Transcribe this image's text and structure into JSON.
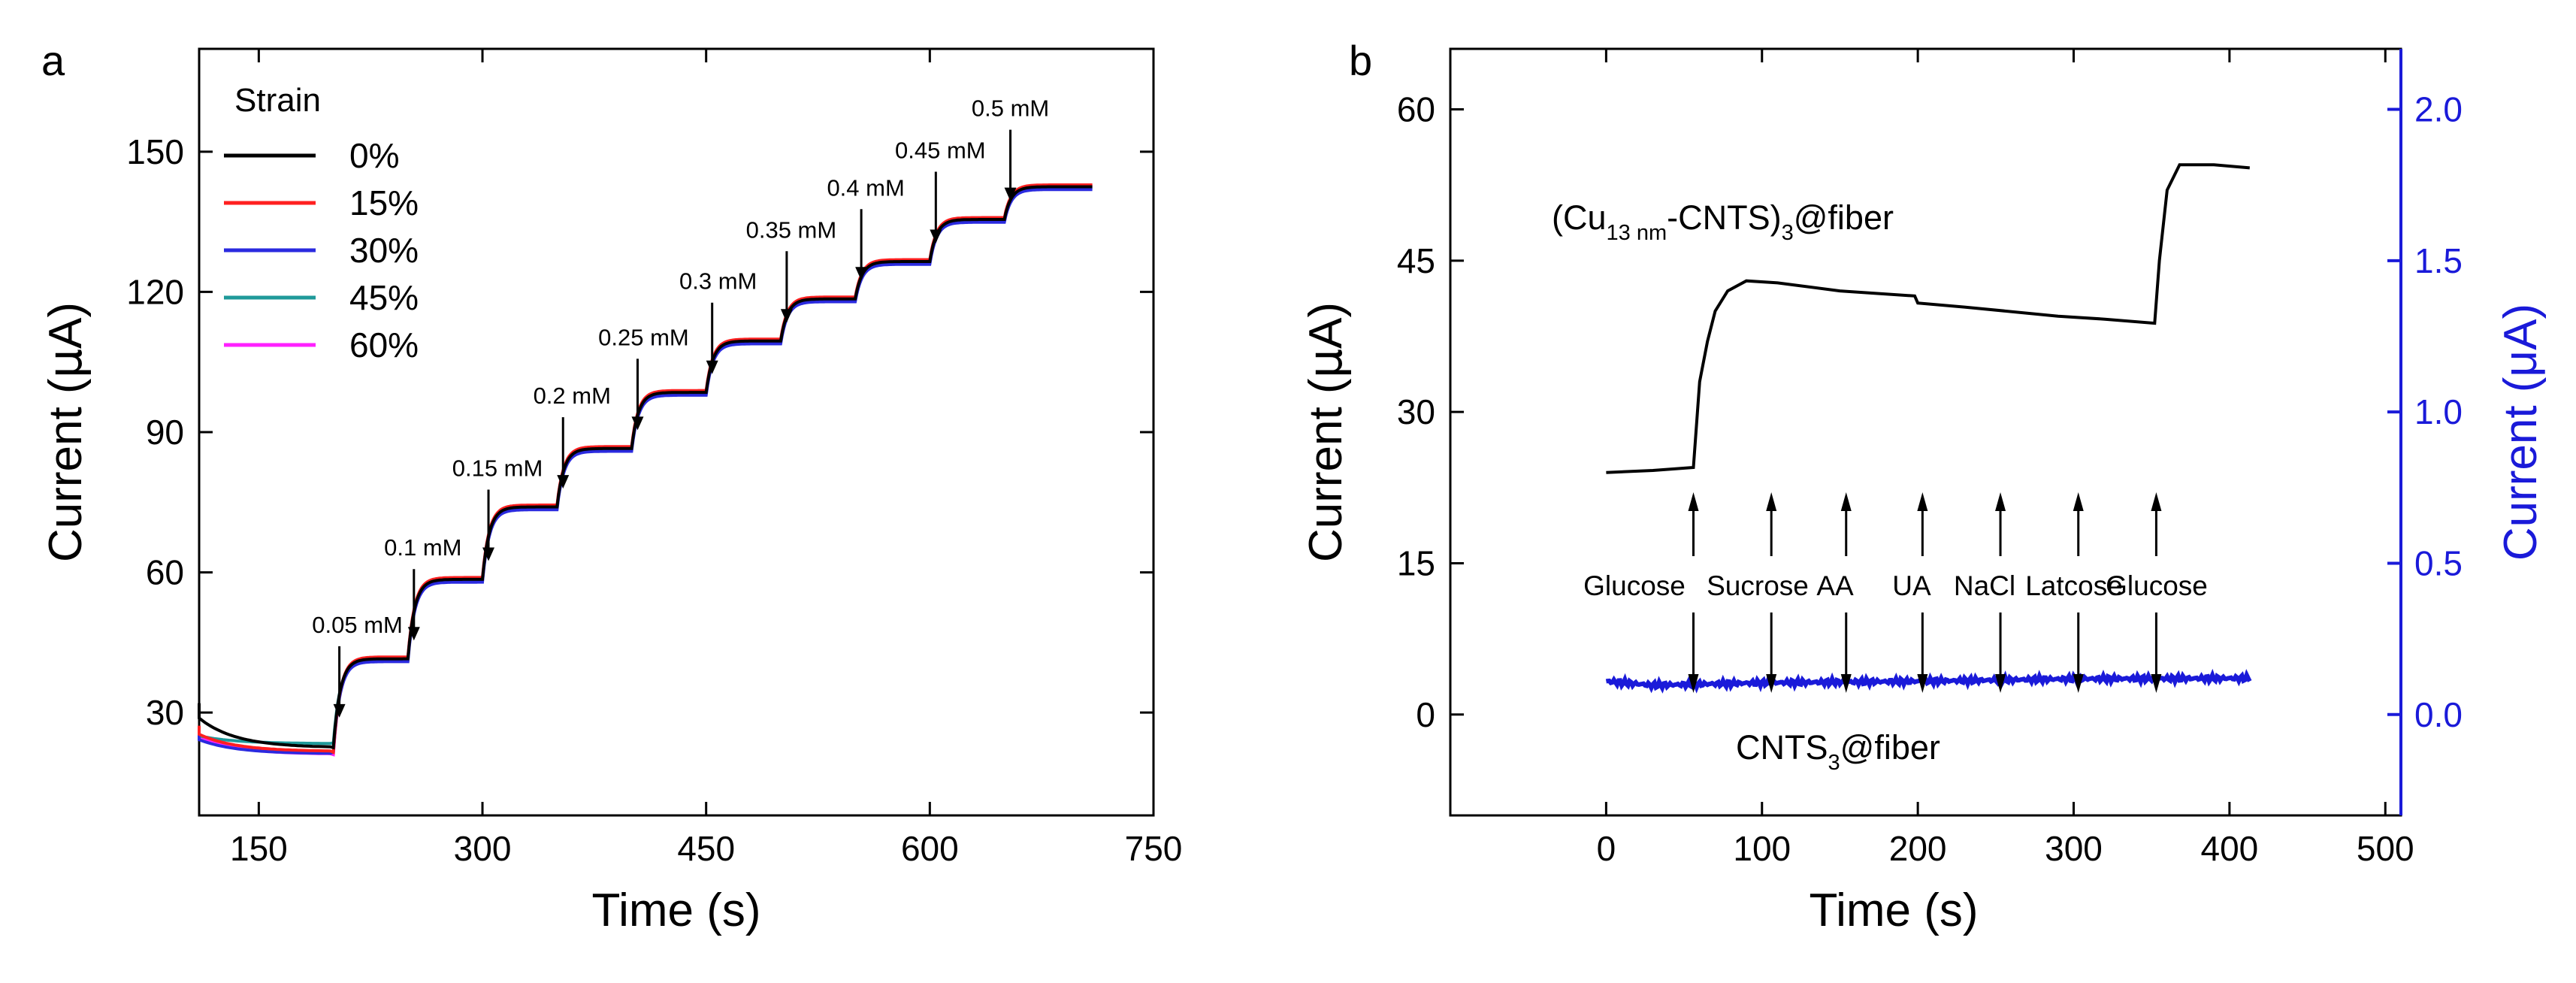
{
  "chart_data": [
    {
      "panel": "a",
      "type": "line",
      "xlabel": "Time (s)",
      "ylabel_main": "Current (",
      "ylabel_mu": "μ",
      "ylabel_unit": "A)",
      "xlim": [
        110,
        750
      ],
      "ylim": [
        8,
        172
      ],
      "xticks": [
        150,
        300,
        450,
        600,
        750
      ],
      "yticks": [
        30,
        60,
        90,
        120,
        150
      ],
      "legend": {
        "title": "Strain",
        "position": "top-left",
        "entries": [
          {
            "label": "0%",
            "color": "#000000"
          },
          {
            "label": "15%",
            "color": "#ff2020"
          },
          {
            "label": "30%",
            "color": "#2a2adf"
          },
          {
            "label": "45%",
            "color": "#1f9a9a"
          },
          {
            "label": "60%",
            "color": "#ff20ff"
          }
        ]
      },
      "series": [
        {
          "name": "0%",
          "offset": 0,
          "start": 32,
          "pre": 22.5
        },
        {
          "name": "15%",
          "offset": 0.4,
          "start": 27,
          "pre": 21.5
        },
        {
          "name": "30%",
          "offset": -0.6,
          "start": 26,
          "pre": 21.5
        },
        {
          "name": "45%",
          "offset": -0.3,
          "start": 26,
          "pre": 23.5
        },
        {
          "name": "60%",
          "offset": 0.2,
          "start": 26.5,
          "pre": 21
        }
      ],
      "steps": [
        {
          "t": 200,
          "level": 41.5,
          "label": "0.05 mM"
        },
        {
          "t": 250,
          "level": 58.5,
          "label": "0.1 mM"
        },
        {
          "t": 300,
          "level": 74,
          "label": "0.15 mM"
        },
        {
          "t": 350,
          "level": 86.5,
          "label": "0.2 mM"
        },
        {
          "t": 400,
          "level": 98.5,
          "label": "0.25 mM"
        },
        {
          "t": 450,
          "level": 109.5,
          "label": "0.3 mM"
        },
        {
          "t": 500,
          "level": 118.5,
          "label": "0.35 mM"
        },
        {
          "t": 550,
          "level": 126.5,
          "label": "0.4 mM"
        },
        {
          "t": 600,
          "level": 135.5,
          "label": "0.45 mM"
        },
        {
          "t": 650,
          "level": 142.5,
          "label": "0.5 mM"
        }
      ],
      "t_end": 710
    },
    {
      "panel": "b",
      "type": "line",
      "xlabel": "Time (s)",
      "ylabel_main": "Current (",
      "ylabel_mu": "μ",
      "ylabel_unit": "A)",
      "y2label": "Current (μA)",
      "xlim": [
        -100,
        510
      ],
      "ylim": [
        -10,
        66
      ],
      "y2lim": [
        -0.33333,
        2.2
      ],
      "xticks": [
        0,
        100,
        200,
        300,
        400,
        500
      ],
      "yticks": [
        0,
        15,
        30,
        45,
        60
      ],
      "y2ticks": [
        "0.0",
        "0.5",
        "1.0",
        "1.5",
        "2.0"
      ],
      "y2color": "#1a1ad9",
      "series": [
        {
          "name": "(Cu13 nm-CNTS)3@fiber",
          "label_main": "(Cu",
          "label_sub1": "13 nm",
          "label_mid": "-CNTS)",
          "label_sub2": "3",
          "label_end": "@fiber",
          "color": "#000000",
          "axis": "left",
          "points": [
            [
              0,
              24
            ],
            [
              30,
              24.2
            ],
            [
              56,
              24.5
            ],
            [
              60,
              33
            ],
            [
              65,
              37
            ],
            [
              70,
              40
            ],
            [
              78,
              42
            ],
            [
              90,
              43
            ],
            [
              110,
              42.8
            ],
            [
              150,
              42
            ],
            [
              198,
              41.5
            ],
            [
              200,
              40.8
            ],
            [
              230,
              40.4
            ],
            [
              290,
              39.5
            ],
            [
              320,
              39.2
            ],
            [
              352,
              38.8
            ],
            [
              355,
              45
            ],
            [
              360,
              52
            ],
            [
              368,
              54.5
            ],
            [
              390,
              54.5
            ],
            [
              413,
              54.2
            ]
          ]
        },
        {
          "name": "CNTS3@fiber",
          "label_main": "CNTS",
          "label_sub": "3",
          "label_end": "@fiber",
          "color": "#1a1ad9",
          "axis": "right",
          "points": [
            [
              0,
              0.11
            ],
            [
              30,
              0.097
            ],
            [
              100,
              0.105
            ],
            [
              200,
              0.11
            ],
            [
              300,
              0.118
            ],
            [
              413,
              0.12
            ]
          ]
        }
      ],
      "additions": [
        {
          "t": 56,
          "label": "Glucose"
        },
        {
          "t": 106,
          "label": "Sucrose"
        },
        {
          "t": 154,
          "label": "AA"
        },
        {
          "t": 203,
          "label": "UA"
        },
        {
          "t": 253,
          "label": "NaCl"
        },
        {
          "t": 303,
          "label": "Latcose"
        },
        {
          "t": 353,
          "label": "Glucose"
        }
      ]
    }
  ]
}
